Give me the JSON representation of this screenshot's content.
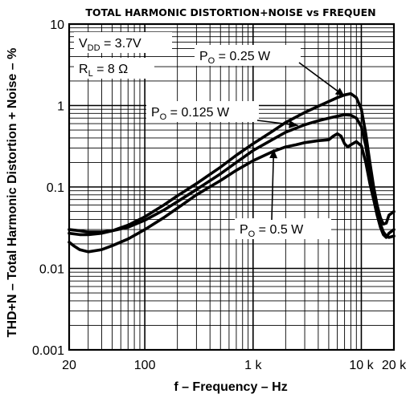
{
  "chart_data": {
    "type": "line",
    "title": "TOTAL HARMONIC DISTORTION+NOISE vs FREQUEN",
    "xlabel": "f – Frequency – Hz",
    "ylabel": "THD+N – Total Harmonic Distortion + Noise – %",
    "x_scale": "log",
    "y_scale": "log",
    "xlim": [
      20,
      20000
    ],
    "ylim": [
      0.001,
      10
    ],
    "x_ticks": [
      {
        "value": 20,
        "label": "20"
      },
      {
        "value": 100,
        "label": "100"
      },
      {
        "value": 1000,
        "label": "1 k"
      },
      {
        "value": 10000,
        "label": "10 k"
      },
      {
        "value": 20000,
        "label": "20 k"
      }
    ],
    "y_ticks": [
      {
        "value": 0.001,
        "label": "0.001"
      },
      {
        "value": 0.01,
        "label": "0.01"
      },
      {
        "value": 0.1,
        "label": "0.1"
      },
      {
        "value": 1,
        "label": "1"
      },
      {
        "value": 10,
        "label": "10"
      }
    ],
    "grid": true,
    "conditions": {
      "vdd": {
        "main": "V",
        "sub": "DD",
        "rest": " = 3.7V"
      },
      "rl": {
        "main": "R",
        "sub": "L",
        "rest": " = 8 Ω"
      }
    },
    "series": [
      {
        "name_main": "P",
        "name_sub": "O",
        "name_rest": " = 0.25 W",
        "points": [
          [
            20,
            0.027
          ],
          [
            25,
            0.026
          ],
          [
            30,
            0.026
          ],
          [
            40,
            0.027
          ],
          [
            50,
            0.029
          ],
          [
            70,
            0.034
          ],
          [
            100,
            0.043
          ],
          [
            150,
            0.06
          ],
          [
            200,
            0.078
          ],
          [
            300,
            0.11
          ],
          [
            500,
            0.175
          ],
          [
            700,
            0.245
          ],
          [
            1000,
            0.34
          ],
          [
            1500,
            0.48
          ],
          [
            2000,
            0.62
          ],
          [
            3000,
            0.82
          ],
          [
            4000,
            0.98
          ],
          [
            5000,
            1.12
          ],
          [
            6000,
            1.25
          ],
          [
            7000,
            1.35
          ],
          [
            8000,
            1.4
          ],
          [
            9000,
            1.25
          ],
          [
            10000,
            0.9
          ],
          [
            11000,
            0.45
          ],
          [
            12000,
            0.2
          ],
          [
            13000,
            0.1
          ],
          [
            14000,
            0.06
          ],
          [
            15000,
            0.042
          ],
          [
            16000,
            0.035
          ],
          [
            17000,
            0.036
          ],
          [
            18000,
            0.045
          ],
          [
            20000,
            0.05
          ]
        ]
      },
      {
        "name_main": "P",
        "name_sub": "O",
        "name_rest": " = 0.125 W",
        "points": [
          [
            20,
            0.03
          ],
          [
            25,
            0.029
          ],
          [
            30,
            0.028
          ],
          [
            40,
            0.028
          ],
          [
            50,
            0.029
          ],
          [
            70,
            0.032
          ],
          [
            100,
            0.039
          ],
          [
            150,
            0.052
          ],
          [
            200,
            0.066
          ],
          [
            300,
            0.093
          ],
          [
            500,
            0.145
          ],
          [
            700,
            0.2
          ],
          [
            1000,
            0.28
          ],
          [
            1500,
            0.38
          ],
          [
            2000,
            0.47
          ],
          [
            3000,
            0.58
          ],
          [
            4000,
            0.65
          ],
          [
            5000,
            0.7
          ],
          [
            6000,
            0.74
          ],
          [
            7000,
            0.77
          ],
          [
            8000,
            0.76
          ],
          [
            9000,
            0.7
          ],
          [
            10000,
            0.55
          ],
          [
            11000,
            0.32
          ],
          [
            12000,
            0.15
          ],
          [
            13000,
            0.08
          ],
          [
            14000,
            0.05
          ],
          [
            15000,
            0.035
          ],
          [
            16000,
            0.028
          ],
          [
            17000,
            0.025
          ],
          [
            18000,
            0.024
          ],
          [
            20000,
            0.025
          ]
        ]
      },
      {
        "name_main": "P",
        "name_sub": "O",
        "name_rest": " = 0.5 W",
        "points": [
          [
            20,
            0.021
          ],
          [
            22,
            0.019
          ],
          [
            25,
            0.017
          ],
          [
            30,
            0.016
          ],
          [
            40,
            0.017
          ],
          [
            50,
            0.019
          ],
          [
            70,
            0.023
          ],
          [
            100,
            0.03
          ],
          [
            150,
            0.042
          ],
          [
            200,
            0.055
          ],
          [
            300,
            0.08
          ],
          [
            500,
            0.12
          ],
          [
            700,
            0.16
          ],
          [
            1000,
            0.21
          ],
          [
            1500,
            0.27
          ],
          [
            2000,
            0.31
          ],
          [
            2500,
            0.33
          ],
          [
            3000,
            0.35
          ],
          [
            4000,
            0.37
          ],
          [
            5000,
            0.38
          ],
          [
            5500,
            0.42
          ],
          [
            6000,
            0.45
          ],
          [
            6500,
            0.42
          ],
          [
            7000,
            0.34
          ],
          [
            7500,
            0.31
          ],
          [
            8000,
            0.33
          ],
          [
            9000,
            0.36
          ],
          [
            10000,
            0.32
          ],
          [
            11000,
            0.2
          ],
          [
            12000,
            0.11
          ],
          [
            13000,
            0.07
          ],
          [
            14000,
            0.045
          ],
          [
            15000,
            0.032
          ],
          [
            16000,
            0.026
          ],
          [
            17000,
            0.024
          ],
          [
            18000,
            0.027
          ],
          [
            20000,
            0.03
          ]
        ]
      }
    ]
  }
}
